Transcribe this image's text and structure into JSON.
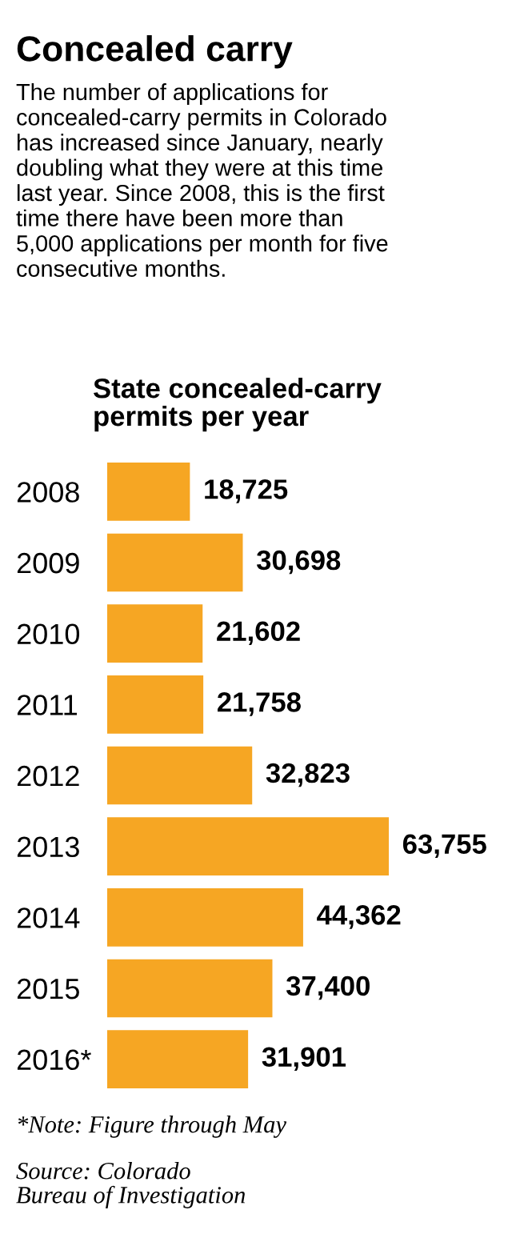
{
  "chart_data": {
    "type": "bar",
    "orientation": "horizontal",
    "title": "Concealed carry",
    "subtitle": "The number of applications for\nconcealed-carry permits in Colorado\nhas increased since January, nearly\ndoubling what they were at this time\nlast year. Since 2008, this is the first\ntime there have been more than\n5,000 applications per month for five\nconsecutive months.",
    "categories": [
      "2008",
      "2009",
      "2010",
      "2011",
      "2012",
      "2013",
      "2014",
      "2015",
      "2016*"
    ],
    "values": [
      18725,
      30698,
      21602,
      21758,
      32823,
      63755,
      44362,
      37400,
      31901
    ],
    "value_labels": [
      "18,725",
      "30,698",
      "21,602",
      "21,758",
      "32,823",
      "63,755",
      "44,362",
      "37,400",
      "31,901"
    ],
    "color": "#f6a623",
    "annotations": [
      "State concealed-carry\npermits per year",
      "*Note: Figure through May",
      "Source: Colorado\nBureau of Investigation"
    ],
    "grid": false,
    "legend": false,
    "tick_labels": "y"
  }
}
